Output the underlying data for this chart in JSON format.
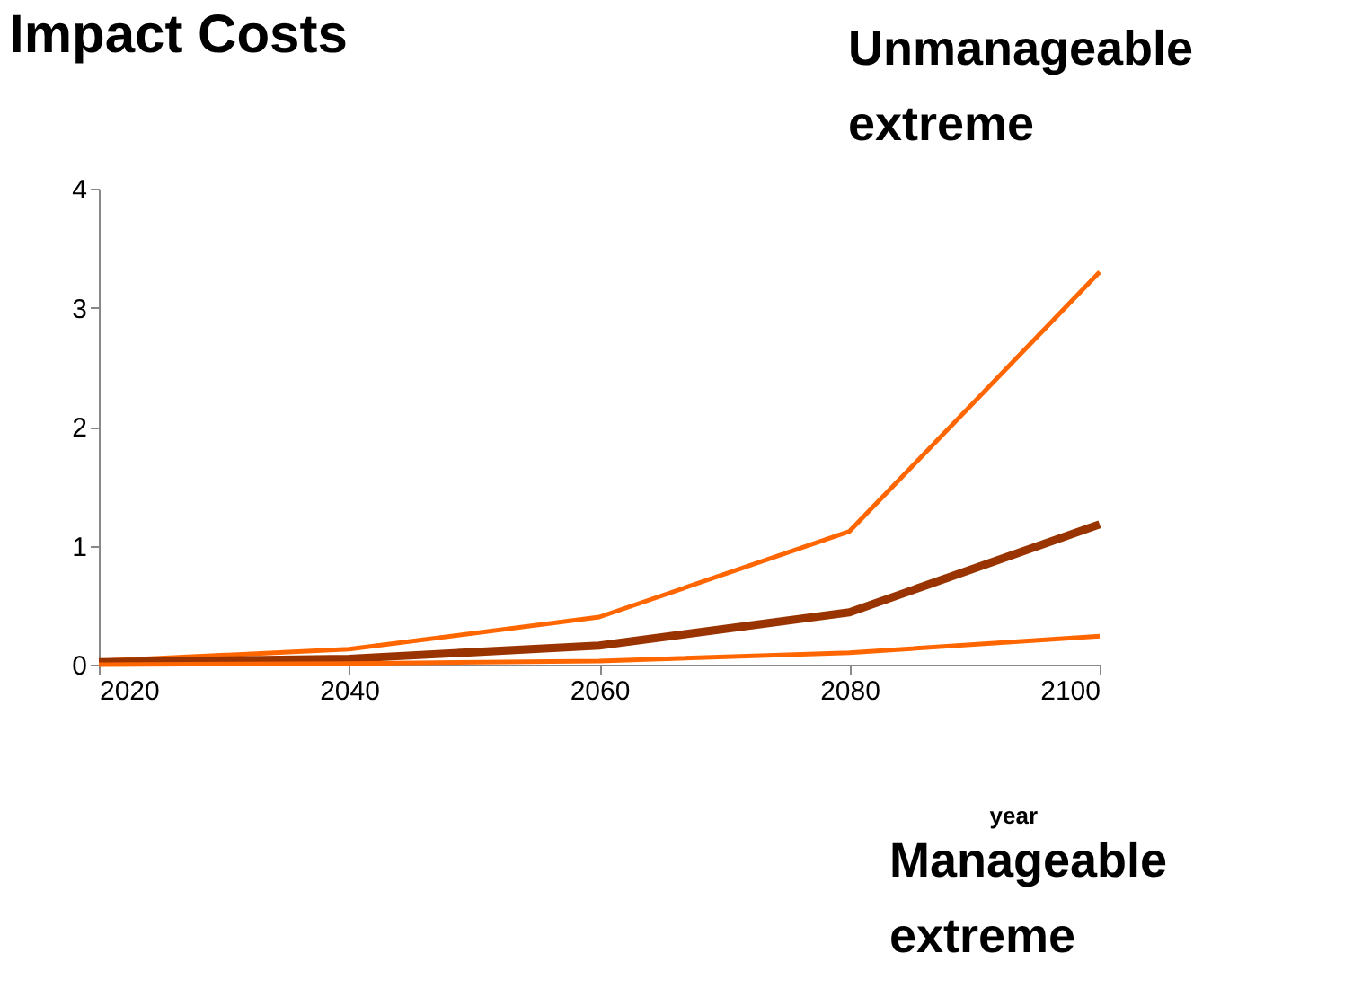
{
  "chart_data": {
    "type": "line",
    "title": "Impact Costs",
    "xlabel": "year",
    "x": [
      2020,
      2040,
      2060,
      2080,
      2100
    ],
    "series": [
      {
        "color": "#ff6600",
        "values": [
          0.03,
          0.13,
          0.4,
          1.12,
          3.3
        ]
      },
      {
        "color": "#993300",
        "values": [
          0.02,
          0.05,
          0.16,
          0.44,
          1.18
        ]
      },
      {
        "color": "#ff6600",
        "values": [
          0.0,
          0.01,
          0.03,
          0.1,
          0.24
        ]
      }
    ],
    "xlim": [
      2020,
      2100
    ],
    "xticks": [
      2020,
      2040,
      2060,
      2080,
      2100
    ],
    "ylim": [
      0,
      4
    ],
    "yticks": [
      0,
      1,
      2,
      3,
      4
    ],
    "annotations": [
      "Unmanageable extreme",
      "Manageable extreme"
    ],
    "grid": false,
    "marker": "none",
    "line_style": "solid"
  }
}
